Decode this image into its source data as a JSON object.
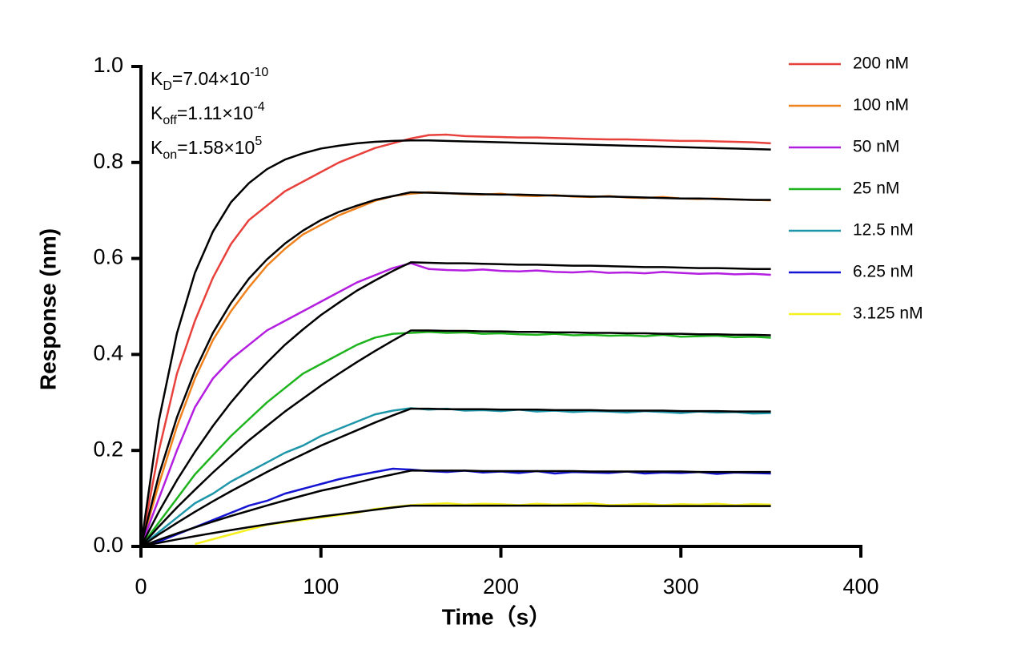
{
  "chart_data": {
    "type": "line",
    "x_label": "Time（s）",
    "y_label": "Response (nm)",
    "annotations": [
      {
        "symbol": "K",
        "subscript": "D",
        "text": "=7.04×10",
        "exponent": "-10"
      },
      {
        "symbol": "K",
        "subscript": "off",
        "text": "=1.11×10",
        "exponent": "-4"
      },
      {
        "symbol": "K",
        "subscript": "on",
        "text": "=1.58×10",
        "exponent": "5"
      }
    ],
    "xlim": [
      0,
      400
    ],
    "xticks": [
      0,
      100,
      200,
      300,
      400
    ],
    "ylim": [
      0,
      1.0
    ],
    "yticks": [
      {
        "value": 0,
        "label": "0.0"
      },
      0.2,
      0.4,
      0.6,
      0.8,
      {
        "value": 1.0,
        "label": "1.0"
      }
    ],
    "grid": false,
    "legend": "right",
    "x": [
      0,
      10,
      20,
      30,
      40,
      50,
      60,
      70,
      80,
      90,
      100,
      110,
      120,
      130,
      140,
      150,
      160,
      170,
      180,
      190,
      200,
      210,
      220,
      230,
      240,
      250,
      260,
      270,
      280,
      290,
      300,
      310,
      320,
      330,
      340,
      350
    ],
    "series": [
      {
        "name": "200 nM",
        "color": "#e8413c",
        "values": [
          0,
          0.2,
          0.36,
          0.47,
          0.56,
          0.63,
          0.68,
          0.71,
          0.74,
          0.76,
          0.78,
          0.8,
          0.815,
          0.83,
          0.84,
          0.85,
          0.857,
          0.858,
          0.855,
          0.854,
          0.853,
          0.852,
          0.852,
          0.851,
          0.85,
          0.849,
          0.848,
          0.848,
          0.847,
          0.846,
          0.845,
          0.845,
          0.844,
          0.843,
          0.842,
          0.84
        ]
      },
      {
        "name": "100 nM",
        "color": "#f0821e",
        "values": [
          0,
          0.13,
          0.25,
          0.35,
          0.43,
          0.49,
          0.54,
          0.585,
          0.62,
          0.65,
          0.67,
          0.69,
          0.705,
          0.72,
          0.73,
          0.735,
          0.738,
          0.736,
          0.734,
          0.733,
          0.735,
          0.731,
          0.73,
          0.732,
          0.729,
          0.728,
          0.73,
          0.727,
          0.726,
          0.728,
          0.725,
          0.724,
          0.725,
          0.723,
          0.722,
          0.721
        ]
      },
      {
        "name": "50 nM",
        "color": "#b41ee0",
        "values": [
          0,
          0.1,
          0.2,
          0.29,
          0.35,
          0.39,
          0.42,
          0.45,
          0.47,
          0.49,
          0.51,
          0.53,
          0.55,
          0.565,
          0.58,
          0.59,
          0.578,
          0.576,
          0.575,
          0.577,
          0.574,
          0.573,
          0.575,
          0.572,
          0.571,
          0.573,
          0.57,
          0.571,
          0.569,
          0.572,
          0.57,
          0.568,
          0.569,
          0.567,
          0.568,
          0.566
        ]
      },
      {
        "name": "25 nM",
        "color": "#1eb41e",
        "values": [
          0,
          0.05,
          0.1,
          0.15,
          0.19,
          0.23,
          0.265,
          0.3,
          0.33,
          0.36,
          0.38,
          0.4,
          0.42,
          0.435,
          0.443,
          0.445,
          0.447,
          0.445,
          0.446,
          0.443,
          0.444,
          0.442,
          0.441,
          0.443,
          0.44,
          0.441,
          0.439,
          0.44,
          0.438,
          0.441,
          0.437,
          0.438,
          0.439,
          0.436,
          0.437,
          0.435
        ]
      },
      {
        "name": "12.5 nM",
        "color": "#1e96aa",
        "values": [
          0,
          0.03,
          0.06,
          0.09,
          0.11,
          0.135,
          0.155,
          0.175,
          0.195,
          0.21,
          0.23,
          0.245,
          0.26,
          0.275,
          0.283,
          0.288,
          0.285,
          0.287,
          0.283,
          0.284,
          0.282,
          0.285,
          0.281,
          0.283,
          0.28,
          0.282,
          0.281,
          0.279,
          0.282,
          0.28,
          0.278,
          0.281,
          0.279,
          0.28,
          0.277,
          0.278
        ]
      },
      {
        "name": "6.25 nM",
        "color": "#1414d2",
        "values": [
          0,
          0.01,
          0.025,
          0.04,
          0.055,
          0.07,
          0.085,
          0.095,
          0.11,
          0.12,
          0.13,
          0.14,
          0.148,
          0.155,
          0.162,
          0.16,
          0.157,
          0.155,
          0.158,
          0.154,
          0.156,
          0.153,
          0.157,
          0.152,
          0.155,
          0.154,
          0.153,
          0.156,
          0.152,
          0.154,
          0.153,
          0.155,
          0.151,
          0.154,
          0.153,
          0.152
        ]
      },
      {
        "name": "3.125 nM",
        "color": "#f5f01e",
        "values": [
          null,
          null,
          null,
          0.005,
          0.015,
          0.025,
          0.035,
          0.045,
          0.05,
          0.055,
          0.06,
          0.065,
          0.07,
          0.078,
          0.082,
          0.086,
          0.088,
          0.09,
          0.087,
          0.089,
          0.088,
          0.086,
          0.089,
          0.087,
          0.088,
          0.09,
          0.086,
          0.087,
          0.089,
          0.086,
          0.088,
          0.087,
          0.089,
          0.086,
          0.088,
          0.087
        ]
      }
    ],
    "fit_series": [
      {
        "color": "#000000",
        "values": [
          0,
          0.263,
          0.444,
          0.57,
          0.656,
          0.717,
          0.757,
          0.786,
          0.806,
          0.819,
          0.829,
          0.835,
          0.84,
          0.843,
          0.845,
          0.846,
          0.846,
          0.845,
          0.844,
          0.843,
          0.842,
          0.841,
          0.84,
          0.839,
          0.838,
          0.837,
          0.836,
          0.835,
          0.834,
          0.833,
          0.832,
          0.831,
          0.83,
          0.829,
          0.828,
          0.827
        ]
      },
      {
        "color": "#000000",
        "values": [
          0,
          0.149,
          0.269,
          0.366,
          0.445,
          0.507,
          0.558,
          0.598,
          0.631,
          0.658,
          0.68,
          0.697,
          0.71,
          0.722,
          0.73,
          0.738,
          0.737,
          0.736,
          0.735,
          0.734,
          0.733,
          0.733,
          0.732,
          0.731,
          0.73,
          0.729,
          0.729,
          0.728,
          0.727,
          0.726,
          0.725,
          0.725,
          0.724,
          0.723,
          0.722,
          0.722
        ]
      },
      {
        "color": "#000000",
        "values": [
          0,
          0.0725,
          0.138,
          0.197,
          0.251,
          0.3,
          0.344,
          0.383,
          0.42,
          0.452,
          0.482,
          0.508,
          0.533,
          0.554,
          0.574,
          0.592,
          0.591,
          0.59,
          0.59,
          0.589,
          0.588,
          0.587,
          0.587,
          0.586,
          0.585,
          0.585,
          0.584,
          0.583,
          0.582,
          0.582,
          0.581,
          0.58,
          0.58,
          0.579,
          0.578,
          0.578
        ]
      },
      {
        "color": "#000000",
        "values": [
          0,
          0.0416,
          0.0811,
          0.118,
          0.154,
          0.188,
          0.221,
          0.251,
          0.281,
          0.308,
          0.335,
          0.36,
          0.384,
          0.407,
          0.429,
          0.45,
          0.45,
          0.449,
          0.449,
          0.448,
          0.448,
          0.447,
          0.447,
          0.446,
          0.446,
          0.445,
          0.445,
          0.444,
          0.444,
          0.443,
          0.443,
          0.442,
          0.442,
          0.441,
          0.441,
          0.44
        ]
      },
      {
        "color": "#000000",
        "values": [
          0,
          0.025,
          0.049,
          0.072,
          0.094,
          0.115,
          0.135,
          0.155,
          0.174,
          0.192,
          0.21,
          0.226,
          0.242,
          0.258,
          0.273,
          0.287,
          0.287,
          0.286,
          0.286,
          0.286,
          0.285,
          0.285,
          0.285,
          0.284,
          0.284,
          0.284,
          0.283,
          0.283,
          0.283,
          0.283,
          0.282,
          0.282,
          0.282,
          0.281,
          0.281,
          0.281
        ]
      },
      {
        "color": "#000000",
        "values": [
          0,
          0.0138,
          0.027,
          0.0396,
          0.0517,
          0.0633,
          0.0743,
          0.0853,
          0.0958,
          0.106,
          0.116,
          0.124,
          0.133,
          0.142,
          0.15,
          0.158,
          0.158,
          0.158,
          0.158,
          0.157,
          0.157,
          0.157,
          0.157,
          0.157,
          0.157,
          0.156,
          0.156,
          0.156,
          0.156,
          0.156,
          0.156,
          0.155,
          0.155,
          0.155,
          0.155,
          0.155
        ]
      },
      {
        "color": "#000000",
        "values": [
          0,
          0.0074,
          0.0145,
          0.0213,
          0.0278,
          0.034,
          0.04,
          0.0459,
          0.0515,
          0.0569,
          0.0622,
          0.0669,
          0.0716,
          0.0764,
          0.081,
          0.085,
          0.085,
          0.085,
          0.085,
          0.085,
          0.085,
          0.085,
          0.085,
          0.085,
          0.085,
          0.085,
          0.084,
          0.084,
          0.084,
          0.084,
          0.084,
          0.084,
          0.084,
          0.084,
          0.084,
          0.084
        ]
      }
    ]
  }
}
